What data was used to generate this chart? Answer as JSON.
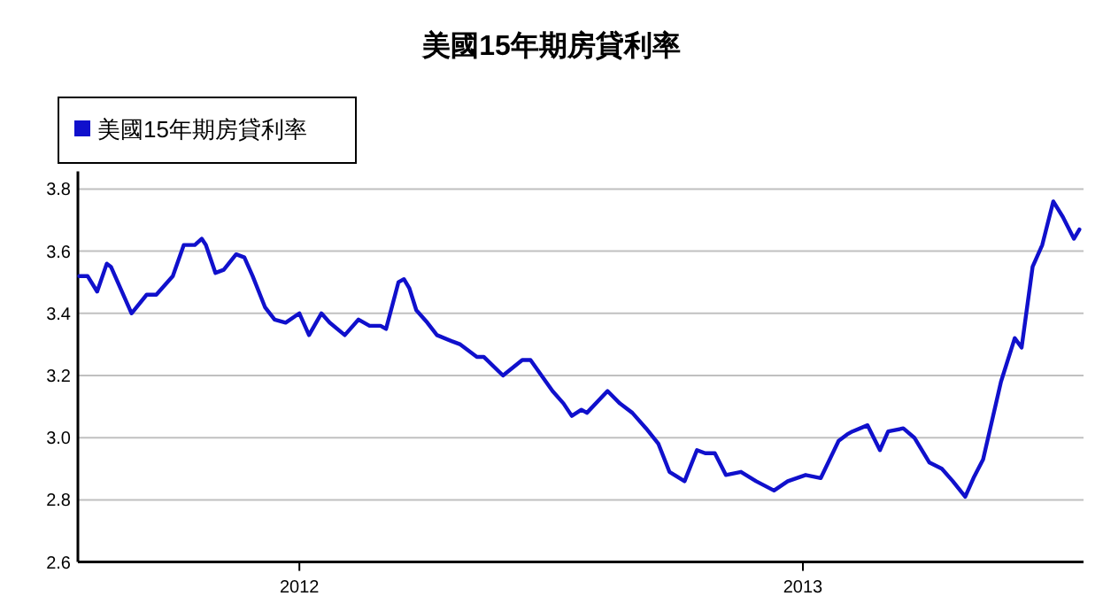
{
  "chart_data": {
    "type": "line",
    "title": "美國15年期房貸利率",
    "x": [
      "2011-07-25",
      "2011-07-31",
      "2011-08-07",
      "2011-08-14",
      "2011-08-17",
      "2011-09-01",
      "2011-09-12",
      "2011-09-19",
      "2011-10-01",
      "2011-10-09",
      "2011-10-17",
      "2011-10-22",
      "2011-10-25",
      "2011-11-01",
      "2011-11-07",
      "2011-11-16",
      "2011-11-22",
      "2011-11-28",
      "2011-12-07",
      "2011-12-14",
      "2011-12-22",
      "2012-01-01",
      "2012-01-08",
      "2012-01-17",
      "2012-01-23",
      "2012-02-03",
      "2012-02-13",
      "2012-02-21",
      "2012-02-29",
      "2012-03-04",
      "2012-03-13",
      "2012-03-17",
      "2012-03-21",
      "2012-03-26",
      "2012-04-03",
      "2012-04-10",
      "2012-04-21",
      "2012-04-27",
      "2012-05-09",
      "2012-05-14",
      "2012-05-28",
      "2012-06-11",
      "2012-06-17",
      "2012-07-03",
      "2012-07-11",
      "2012-07-17",
      "2012-07-24",
      "2012-07-28",
      "2012-08-12",
      "2012-08-21",
      "2012-08-30",
      "2012-09-09",
      "2012-09-18",
      "2012-09-26",
      "2012-10-07",
      "2012-10-16",
      "2012-10-22",
      "2012-10-29",
      "2012-11-06",
      "2012-11-17",
      "2012-11-28",
      "2012-12-11",
      "2012-12-21",
      "2013-01-03",
      "2013-01-14",
      "2013-01-27",
      "2013-02-02",
      "2013-02-06",
      "2013-02-17",
      "2013-02-26",
      "2013-03-04",
      "2013-03-15",
      "2013-03-23",
      "2013-04-03",
      "2013-04-12",
      "2013-04-20",
      "2013-04-29",
      "2013-05-05",
      "2013-05-12",
      "2013-05-25",
      "2013-06-04",
      "2013-06-09",
      "2013-06-17",
      "2013-06-24",
      "2013-07-02",
      "2013-07-09",
      "2013-07-17",
      "2013-07-21"
    ],
    "series": [
      {
        "name": "美國15年期房貸利率",
        "color": "#1010cc",
        "values": [
          3.52,
          3.52,
          3.47,
          3.56,
          3.55,
          3.4,
          3.46,
          3.46,
          3.52,
          3.62,
          3.62,
          3.64,
          3.62,
          3.53,
          3.54,
          3.59,
          3.58,
          3.52,
          3.42,
          3.38,
          3.37,
          3.4,
          3.33,
          3.4,
          3.37,
          3.33,
          3.38,
          3.36,
          3.36,
          3.35,
          3.5,
          3.51,
          3.48,
          3.41,
          3.37,
          3.33,
          3.31,
          3.3,
          3.26,
          3.26,
          3.2,
          3.25,
          3.25,
          3.15,
          3.11,
          3.07,
          3.09,
          3.08,
          3.15,
          3.11,
          3.08,
          3.03,
          2.98,
          2.89,
          2.86,
          2.96,
          2.95,
          2.95,
          2.88,
          2.89,
          2.86,
          2.83,
          2.86,
          2.88,
          2.87,
          2.99,
          3.01,
          3.02,
          3.04,
          2.96,
          3.02,
          3.03,
          3.0,
          2.92,
          2.9,
          2.86,
          2.81,
          2.87,
          2.93,
          3.18,
          3.32,
          3.29,
          3.55,
          3.62,
          3.76,
          3.71,
          3.64,
          3.67
        ]
      }
    ],
    "xlim": [
      "2011-07-24",
      "2013-07-24"
    ],
    "xticks": [
      {
        "value": "2012-01-01",
        "label": "2012"
      },
      {
        "value": "2013-01-01",
        "label": "2013"
      }
    ],
    "ylim": [
      2.6,
      3.8
    ],
    "yticks": [
      {
        "value": 2.6,
        "label": "2.6"
      },
      {
        "value": 2.8,
        "label": "2.8"
      },
      {
        "value": 3.0,
        "label": "3.0"
      },
      {
        "value": 3.2,
        "label": "3.2"
      },
      {
        "value": 3.4,
        "label": "3.4"
      },
      {
        "value": 3.6,
        "label": "3.6"
      },
      {
        "value": 3.8,
        "label": "3.8"
      }
    ],
    "grid": "y",
    "legend": "top left"
  }
}
